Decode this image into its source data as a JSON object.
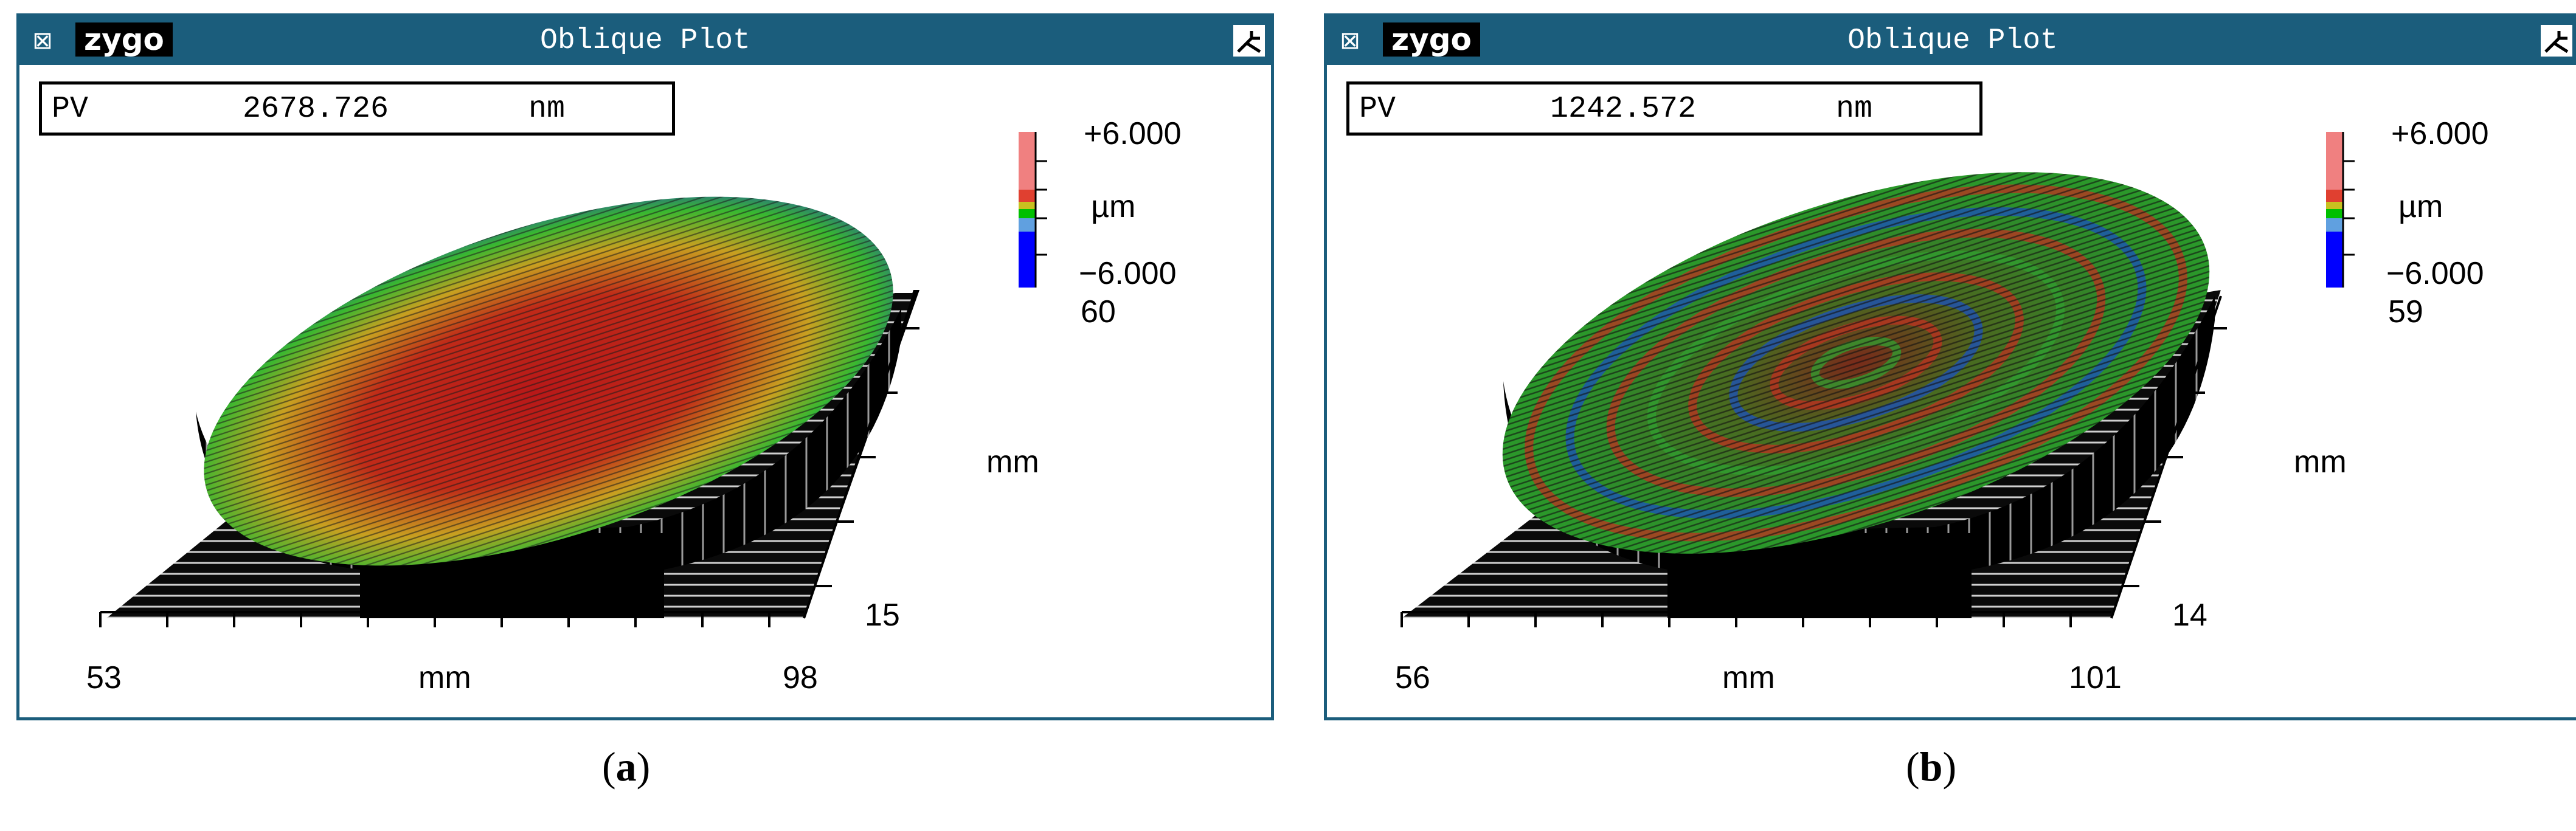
{
  "windows": [
    {
      "title": "Oblique Plot",
      "logo": "zygo",
      "pv": {
        "label": "PV",
        "value": "2678.726",
        "unit": "nm"
      },
      "colorbar": {
        "max": "+6.000",
        "unit": "µm",
        "min": "−6.000"
      },
      "y_axis": {
        "top": "60",
        "bottom": "15",
        "label": "mm"
      },
      "x_axis": {
        "left": "53",
        "right": "98",
        "label": "mm"
      },
      "caption": "a"
    },
    {
      "title": "Oblique Plot",
      "logo": "zygo",
      "pv": {
        "label": "PV",
        "value": "1242.572",
        "unit": "nm"
      },
      "colorbar": {
        "max": "+6.000",
        "unit": "µm",
        "min": "−6.000"
      },
      "y_axis": {
        "top": "59",
        "bottom": "14",
        "label": "mm"
      },
      "x_axis": {
        "left": "56",
        "right": "101",
        "label": "mm"
      },
      "caption": "b"
    }
  ],
  "colors": {
    "window_border": "#1b5d7c",
    "colorbar_top": "#f08080",
    "colorbar_mid": "#00c000",
    "colorbar_bottom": "#0000ff"
  }
}
